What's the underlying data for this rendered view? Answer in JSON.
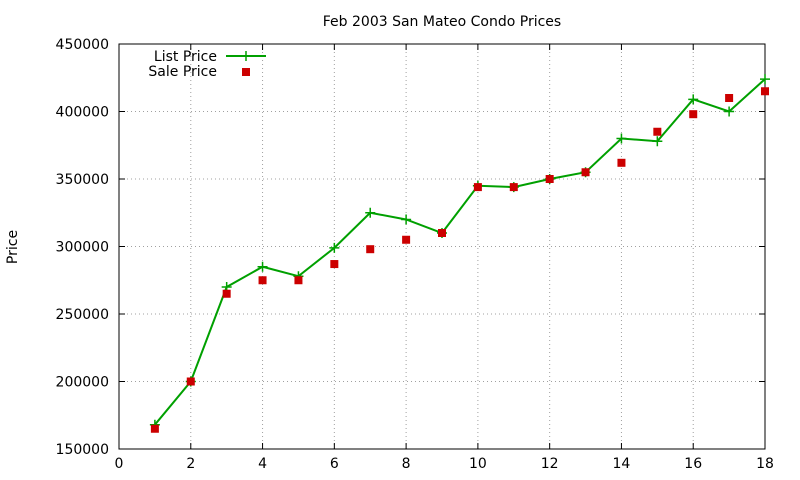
{
  "chart_data": {
    "type": "line",
    "title": "Feb 2003 San Mateo Condo Prices",
    "xlabel": "",
    "ylabel": "Price",
    "xlim": [
      0,
      18
    ],
    "ylim": [
      150000,
      450000
    ],
    "xticks": [
      0,
      2,
      4,
      6,
      8,
      10,
      12,
      14,
      16,
      18
    ],
    "yticks": [
      150000,
      200000,
      250000,
      300000,
      350000,
      400000,
      450000
    ],
    "grid": true,
    "legend_position": "top-left",
    "series": [
      {
        "name": "List Price",
        "style": "line+cross",
        "color": "#00a000",
        "x": [
          1,
          2,
          3,
          4,
          5,
          6,
          7,
          8,
          9,
          10,
          11,
          12,
          13,
          14,
          15,
          16,
          17,
          18
        ],
        "y": [
          168000,
          200000,
          270000,
          285000,
          278000,
          299000,
          325000,
          320000,
          310000,
          345000,
          344000,
          350000,
          355000,
          380000,
          378000,
          409000,
          400000,
          424000
        ]
      },
      {
        "name": "Sale Price",
        "style": "square",
        "color": "#cc0000",
        "x": [
          1,
          2,
          3,
          4,
          5,
          6,
          7,
          8,
          9,
          10,
          11,
          12,
          13,
          14,
          15,
          16,
          17,
          18
        ],
        "y": [
          165000,
          200000,
          265000,
          275000,
          275000,
          287000,
          298000,
          305000,
          310000,
          344000,
          344000,
          350000,
          355000,
          362000,
          385000,
          398000,
          410000,
          415000
        ]
      }
    ]
  }
}
